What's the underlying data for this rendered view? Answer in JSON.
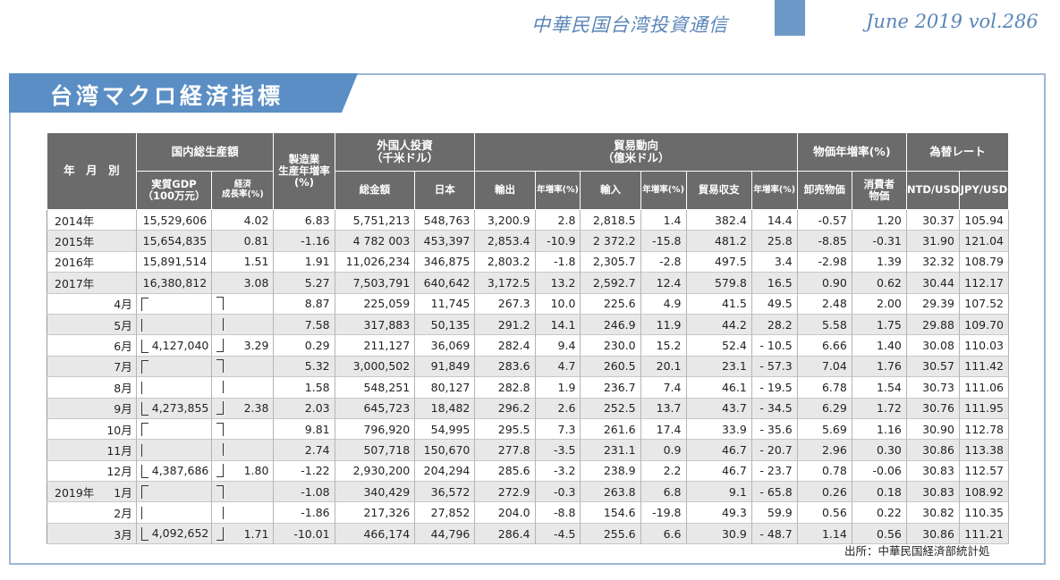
{
  "header": {
    "publication": "中華民国台湾投資通信",
    "issue": "June 2019 vol.286"
  },
  "banner": {
    "title": "台湾マクロ経済指標"
  },
  "table": {
    "head": {
      "period": "年　月　別",
      "gdp_group": "国内総生産額",
      "gdp_real": "実質GDP\n（100万元）",
      "gdp_growth": "経済\n成長率(%)",
      "mfg": "製造業\n生産年増率\n(%)",
      "fdi_group": "外国人投資\n（千米ドル）",
      "fdi_total": "総金額",
      "fdi_japan": "日本",
      "trade_group": "貿易動向\n（億米ドル）",
      "exports": "輸出",
      "exports_yoy": "年増率(%)",
      "imports": "輸入",
      "imports_yoy": "年増率(%)",
      "balance": "貿易収支",
      "balance_yoy": "年増率(%)",
      "price_group": "物価年増率(%)",
      "wholesale": "卸売物価",
      "consumer": "消費者\n物価",
      "fx_group": "為替レート",
      "ntd": "NTD/USD",
      "jpy": "JPY/USD"
    },
    "rows": [
      {
        "year": "2014年",
        "month": "",
        "gdp": "15,529,606",
        "growth": "4.02",
        "mfg": "6.83",
        "fdi": "5,751,213",
        "jp": "548,763",
        "exp": "3,200.9",
        "expy": "2.8",
        "imp": "2,818.5",
        "impy": "1.4",
        "bal": "382.4",
        "baly": "14.4",
        "wpi": "-0.57",
        "cpi": "1.20",
        "ntd": "30.37",
        "jpy": "105.94"
      },
      {
        "year": "2015年",
        "month": "",
        "gdp": "15,654,835",
        "growth": "0.81",
        "mfg": "-1.16",
        "fdi": "4 782 003",
        "jp": "453,397",
        "exp": "2,853.4",
        "expy": "-10.9",
        "imp": "2 372.2",
        "impy": "-15.8",
        "bal": "481.2",
        "baly": "25.8",
        "wpi": "-8.85",
        "cpi": "-0.31",
        "ntd": "31.90",
        "jpy": "121.04"
      },
      {
        "year": "2016年",
        "month": "",
        "gdp": "15,891,514",
        "growth": "1.51",
        "mfg": "1.91",
        "fdi": "11,026,234",
        "jp": "346,875",
        "exp": "2,803.2",
        "expy": "-1.8",
        "imp": "2,305.7",
        "impy": "-2.8",
        "bal": "497.5",
        "baly": "3.4",
        "wpi": "-2.98",
        "cpi": "1.39",
        "ntd": "32.32",
        "jpy": "108.79"
      },
      {
        "year": "2017年",
        "month": "",
        "gdp": "16,380,812",
        "growth": "3.08",
        "mfg": "5.27",
        "fdi": "7,503,791",
        "jp": "640,642",
        "exp": "3,172.5",
        "expy": "13.2",
        "imp": "2,592.7",
        "impy": "12.4",
        "bal": "579.8",
        "baly": "16.5",
        "wpi": "0.90",
        "cpi": "0.62",
        "ntd": "30.44",
        "jpy": "112.17"
      },
      {
        "year": "",
        "month": "4月",
        "gdp": "",
        "growth": "",
        "mfg": "8.87",
        "fdi": "225,059",
        "jp": "11,745",
        "exp": "267.3",
        "expy": "10.0",
        "imp": "225.6",
        "impy": "4.9",
        "bal": "41.5",
        "baly": "49.5",
        "wpi": "2.48",
        "cpi": "2.00",
        "ntd": "29.39",
        "jpy": "107.52"
      },
      {
        "year": "",
        "month": "5月",
        "gdp": "",
        "growth": "",
        "mfg": "7.58",
        "fdi": "317,883",
        "jp": "50,135",
        "exp": "291.2",
        "expy": "14.1",
        "imp": "246.9",
        "impy": "11.9",
        "bal": "44.2",
        "baly": "28.2",
        "wpi": "5.58",
        "cpi": "1.75",
        "ntd": "29.88",
        "jpy": "109.70"
      },
      {
        "year": "",
        "month": "6月",
        "gdp": "4,127,040",
        "growth": "3.29",
        "mfg": "0.29",
        "fdi": "211,127",
        "jp": "36,069",
        "exp": "282.4",
        "expy": "9.4",
        "imp": "230.0",
        "impy": "15.2",
        "bal": "52.4",
        "baly": "- 10.5",
        "wpi": "6.66",
        "cpi": "1.40",
        "ntd": "30.08",
        "jpy": "110.03"
      },
      {
        "year": "",
        "month": "7月",
        "gdp": "",
        "growth": "",
        "mfg": "5.32",
        "fdi": "3,000,502",
        "jp": "91,849",
        "exp": "283.6",
        "expy": "4.7",
        "imp": "260.5",
        "impy": "20.1",
        "bal": "23.1",
        "baly": "- 57.3",
        "wpi": "7.04",
        "cpi": "1.76",
        "ntd": "30.57",
        "jpy": "111.42"
      },
      {
        "year": "",
        "month": "8月",
        "gdp": "",
        "growth": "",
        "mfg": "1.58",
        "fdi": "548,251",
        "jp": "80,127",
        "exp": "282.8",
        "expy": "1.9",
        "imp": "236.7",
        "impy": "7.4",
        "bal": "46.1",
        "baly": "- 19.5",
        "wpi": "6.78",
        "cpi": "1.54",
        "ntd": "30.73",
        "jpy": "111.06"
      },
      {
        "year": "",
        "month": "9月",
        "gdp": "4,273,855",
        "growth": "2.38",
        "mfg": "2.03",
        "fdi": "645,723",
        "jp": "18,482",
        "exp": "296.2",
        "expy": "2.6",
        "imp": "252.5",
        "impy": "13.7",
        "bal": "43.7",
        "baly": "- 34.5",
        "wpi": "6.29",
        "cpi": "1.72",
        "ntd": "30.76",
        "jpy": "111.95"
      },
      {
        "year": "",
        "month": "10月",
        "gdp": "",
        "growth": "",
        "mfg": "9.81",
        "fdi": "796,920",
        "jp": "54,995",
        "exp": "295.5",
        "expy": "7.3",
        "imp": "261.6",
        "impy": "17.4",
        "bal": "33.9",
        "baly": "- 35.6",
        "wpi": "5.69",
        "cpi": "1.16",
        "ntd": "30.90",
        "jpy": "112.78"
      },
      {
        "year": "",
        "month": "11月",
        "gdp": "",
        "growth": "",
        "mfg": "2.74",
        "fdi": "507,718",
        "jp": "150,670",
        "exp": "277.8",
        "expy": "-3.5",
        "imp": "231.1",
        "impy": "0.9",
        "bal": "46.7",
        "baly": "- 20.7",
        "wpi": "2.96",
        "cpi": "0.30",
        "ntd": "30.86",
        "jpy": "113.38"
      },
      {
        "year": "",
        "month": "12月",
        "gdp": "4,387,686",
        "growth": "1.80",
        "mfg": "-1.22",
        "fdi": "2,930,200",
        "jp": "204,294",
        "exp": "285.6",
        "expy": "-3.2",
        "imp": "238.9",
        "impy": "2.2",
        "bal": "46.7",
        "baly": "- 23.7",
        "wpi": "0.78",
        "cpi": "-0.06",
        "ntd": "30.83",
        "jpy": "112.57"
      },
      {
        "year": "2019年",
        "month": "1月",
        "gdp": "",
        "growth": "",
        "mfg": "-1.08",
        "fdi": "340,429",
        "jp": "36,572",
        "exp": "272.9",
        "expy": "-0.3",
        "imp": "263.8",
        "impy": "6.8",
        "bal": "9.1",
        "baly": "- 65.8",
        "wpi": "0.26",
        "cpi": "0.18",
        "ntd": "30.83",
        "jpy": "108.92"
      },
      {
        "year": "",
        "month": "2月",
        "gdp": "",
        "growth": "",
        "mfg": "-1.86",
        "fdi": "217,326",
        "jp": "27,852",
        "exp": "204.0",
        "expy": "-8.8",
        "imp": "154.6",
        "impy": "-19.8",
        "bal": "49.3",
        "baly": "59.9",
        "wpi": "0.56",
        "cpi": "0.22",
        "ntd": "30.82",
        "jpy": "110.35"
      },
      {
        "year": "",
        "month": "3月",
        "gdp": "4,092,652",
        "growth": "1.71",
        "mfg": "-10.01",
        "fdi": "466,174",
        "jp": "44,796",
        "exp": "286.4",
        "expy": "-4.5",
        "imp": "255.6",
        "impy": "6.6",
        "bal": "30.9",
        "baly": "- 48.7",
        "wpi": "1.14",
        "cpi": "0.56",
        "ntd": "30.86",
        "jpy": "111.21"
      }
    ]
  },
  "source": "出所：中華民国経済部統計処",
  "colors": {
    "accent": "#5a86b8",
    "header_bg": "#6b6b6b",
    "banner": "#5b8ec4"
  }
}
